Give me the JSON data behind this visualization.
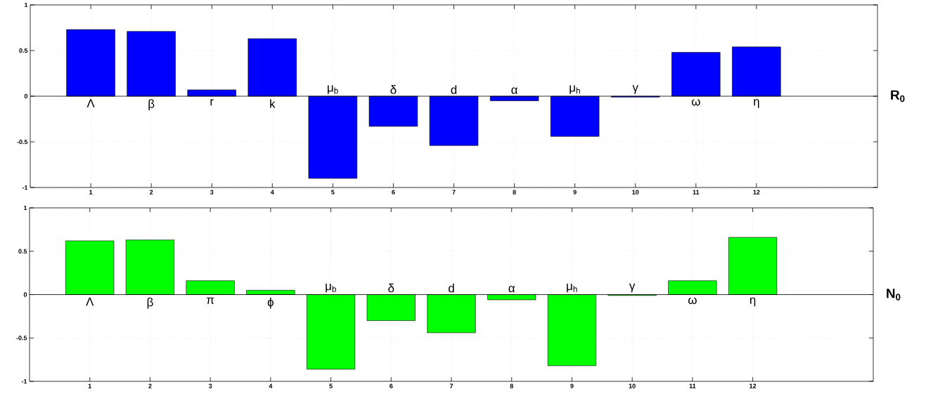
{
  "chart_data": [
    {
      "type": "bar",
      "ylabel": "R$_{0}$",
      "x": [
        1,
        2,
        3,
        4,
        5,
        6,
        7,
        8,
        9,
        10,
        11,
        12
      ],
      "values": [
        0.73,
        0.71,
        0.07,
        0.63,
        -0.9,
        -0.33,
        -0.54,
        -0.05,
        -0.44,
        -0.01,
        0.48,
        0.54
      ],
      "color": "#0000ff",
      "xlim": [
        0,
        14
      ],
      "ylim": [
        -1,
        1
      ],
      "xticks": [
        1,
        2,
        3,
        4,
        5,
        6,
        7,
        8,
        9,
        10,
        11,
        12
      ],
      "yticks": [
        -1,
        -0.5,
        0,
        0.5,
        1
      ],
      "grid": true,
      "ref_lines": [
        {
          "axis": "y",
          "value": 0,
          "color": "#000000"
        }
      ],
      "annotations": [
        "Λ",
        "β",
        "r",
        "k",
        "μ$_{b}$",
        "δ",
        "d",
        "α",
        "μ$_{h}$",
        "γ",
        "ω",
        "η"
      ]
    },
    {
      "type": "bar",
      "ylabel": "N$_{0}$",
      "x": [
        1,
        2,
        3,
        4,
        5,
        6,
        7,
        8,
        9,
        10,
        11,
        12
      ],
      "values": [
        0.62,
        0.63,
        0.16,
        0.05,
        -0.86,
        -0.3,
        -0.44,
        -0.06,
        -0.82,
        -0.01,
        0.16,
        0.66
      ],
      "color": "#00ff00",
      "xlim": [
        0,
        14
      ],
      "ylim": [
        -1,
        1
      ],
      "xticks": [
        1,
        2,
        3,
        4,
        5,
        6,
        7,
        8,
        9,
        10,
        11,
        12
      ],
      "yticks": [
        -1,
        -0.5,
        0,
        0.5,
        1
      ],
      "grid": true,
      "ref_lines": [
        {
          "axis": "y",
          "value": 0,
          "color": "#000000"
        }
      ],
      "annotations": [
        "Λ",
        "β",
        "π",
        "ϕ",
        "μ$_{b}$",
        "δ",
        "d",
        "α",
        "μ$_{h}$",
        "γ",
        "ω",
        "η"
      ]
    }
  ]
}
